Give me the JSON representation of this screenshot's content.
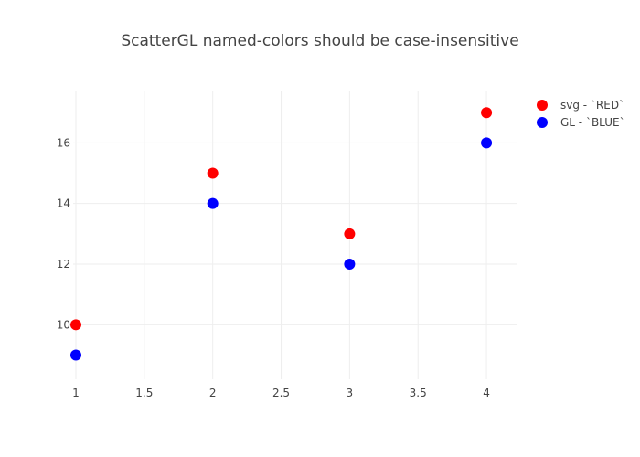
{
  "chart_data": {
    "type": "scatter",
    "title": "ScatterGL named-colors should be case-insensitive",
    "xlabel": "",
    "ylabel": "",
    "xlim": [
      0.98,
      4.22
    ],
    "ylim": [
      8.2,
      17.7
    ],
    "x_ticks": [
      1,
      1.5,
      2,
      2.5,
      3,
      3.5,
      4
    ],
    "x_tick_labels": [
      "1",
      "1.5",
      "2",
      "2.5",
      "3",
      "3.5",
      "4"
    ],
    "y_ticks": [
      10,
      12,
      14,
      16
    ],
    "y_tick_labels": [
      "10",
      "12",
      "14",
      "16"
    ],
    "grid": true,
    "legend_position": "top-right",
    "series": [
      {
        "name": "svg - `RED`",
        "color": "#ff0000",
        "x": [
          1,
          2,
          3,
          4
        ],
        "y": [
          10,
          15,
          13,
          17
        ]
      },
      {
        "name": "GL - `BLUE`",
        "color": "#0000ff",
        "x": [
          1,
          2,
          3,
          4
        ],
        "y": [
          9,
          14,
          12,
          16
        ]
      }
    ]
  }
}
